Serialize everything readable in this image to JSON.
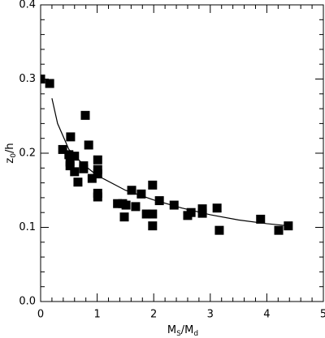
{
  "chart_data": {
    "type": "scatter",
    "xlabel": [
      "M",
      "S",
      "/M",
      "d"
    ],
    "ylabel": [
      "z",
      "0",
      "/h"
    ],
    "x": [
      0,
      0.16,
      0.39,
      0.5,
      0.53,
      0.52,
      0.52,
      0.6,
      0.6,
      0.66,
      0.76,
      0.76,
      0.79,
      0.85,
      0.91,
      1.01,
      1.01,
      1.01,
      1.01,
      1.01,
      1.36,
      1.45,
      1.48,
      1.51,
      1.61,
      1.68,
      1.78,
      1.87,
      1.98,
      1.98,
      1.98,
      2.1,
      2.36,
      2.6,
      2.66,
      2.86,
      2.86,
      3.12,
      3.16,
      3.89,
      4.21,
      4.38
    ],
    "values": [
      0.3,
      0.294,
      0.205,
      0.198,
      0.222,
      0.188,
      0.183,
      0.196,
      0.175,
      0.161,
      0.183,
      0.179,
      0.251,
      0.211,
      0.166,
      0.191,
      0.178,
      0.172,
      0.146,
      0.141,
      0.132,
      0.132,
      0.114,
      0.13,
      0.15,
      0.128,
      0.145,
      0.118,
      0.157,
      0.118,
      0.102,
      0.136,
      0.13,
      0.116,
      0.12,
      0.125,
      0.119,
      0.126,
      0.096,
      0.111,
      0.096,
      0.102
    ],
    "color": "#000000",
    "fit": {
      "x": [
        0.2,
        0.3,
        0.5,
        0.75,
        1,
        1.5,
        2,
        2.5,
        3,
        3.5,
        4,
        4.4
      ],
      "values": [
        0.274,
        0.24,
        0.205,
        0.185,
        0.17,
        0.15,
        0.137,
        0.126,
        0.117,
        0.11,
        0.105,
        0.102
      ]
    },
    "xlim": [
      0,
      5
    ],
    "ylim": [
      0,
      0.4
    ],
    "xticks": [
      0,
      1,
      2,
      3,
      4,
      5
    ],
    "yticks": [
      {
        "value": 0,
        "label": "0.0"
      },
      0.1,
      0.2,
      0.3,
      0.4
    ]
  }
}
